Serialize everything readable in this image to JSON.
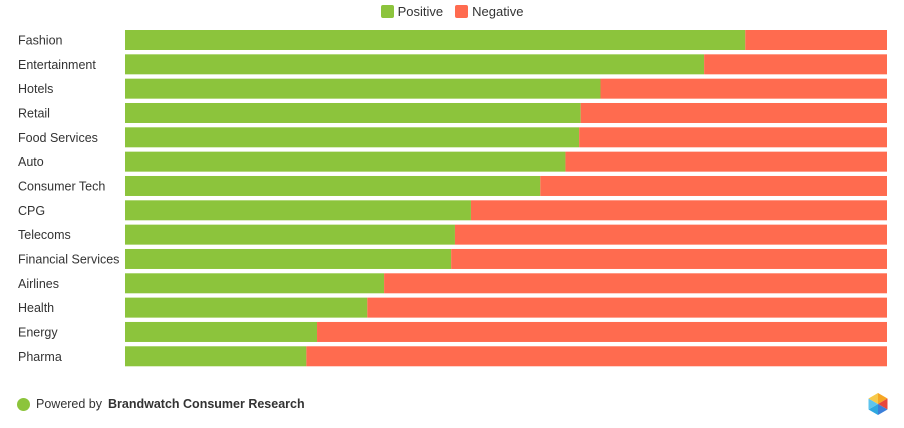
{
  "chart_data": {
    "type": "bar",
    "orientation": "horizontal",
    "stacked": "percent",
    "categories": [
      "Fashion",
      "Entertainment",
      "Hotels",
      "Retail",
      "Food Services",
      "Auto",
      "Consumer Tech",
      "CPG",
      "Telecoms",
      "Financial Services",
      "Airlines",
      "Health",
      "Energy",
      "Pharma"
    ],
    "series": [
      {
        "name": "Positive",
        "color": "#8cc43c",
        "values": [
          81.4,
          76.0,
          62.4,
          59.8,
          59.6,
          57.8,
          54.5,
          45.4,
          43.3,
          42.8,
          34.0,
          31.8,
          25.2,
          23.8
        ]
      },
      {
        "name": "Negative",
        "color": "#ff6b4f",
        "values": [
          18.6,
          24.0,
          37.6,
          40.2,
          40.4,
          42.2,
          45.5,
          54.6,
          56.7,
          57.2,
          66.0,
          68.2,
          74.8,
          76.2
        ]
      }
    ],
    "xlim": [
      0,
      100
    ],
    "legend_position": "top-center"
  },
  "footer": {
    "prefix": "Powered by ",
    "brand": "Brandwatch Consumer Research",
    "dot_color": "#8cc43c"
  },
  "logo_icon": "brandwatch-hexagon-icon"
}
